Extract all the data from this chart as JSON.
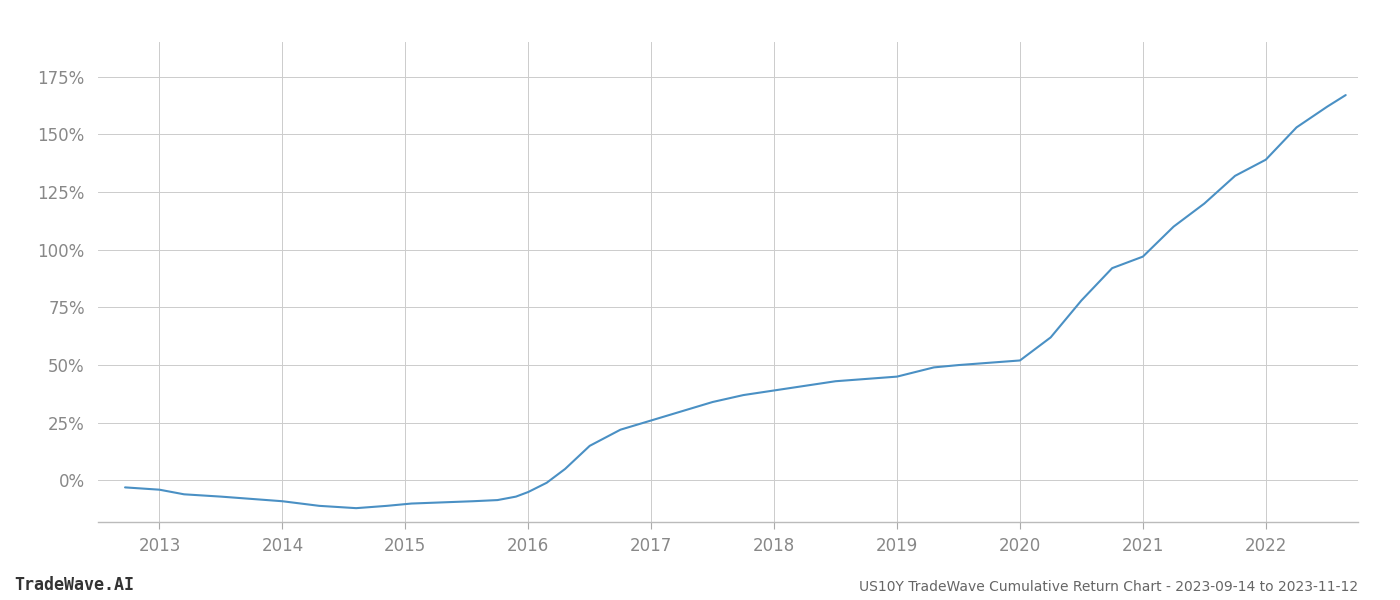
{
  "title": "US10Y TradeWave Cumulative Return Chart - 2023-09-14 to 2023-11-12",
  "watermark": "TradeWave.AI",
  "line_color": "#4a90c4",
  "background_color": "#ffffff",
  "grid_color": "#cccccc",
  "x_years": [
    2012.72,
    2013.0,
    2013.2,
    2013.5,
    2013.75,
    2014.0,
    2014.3,
    2014.6,
    2014.85,
    2015.05,
    2015.3,
    2015.55,
    2015.75,
    2015.9,
    2016.0,
    2016.15,
    2016.3,
    2016.5,
    2016.75,
    2017.0,
    2017.25,
    2017.5,
    2017.75,
    2018.0,
    2018.25,
    2018.5,
    2018.75,
    2019.0,
    2019.15,
    2019.3,
    2019.5,
    2019.75,
    2020.0,
    2020.25,
    2020.5,
    2020.75,
    2021.0,
    2021.25,
    2021.5,
    2021.75,
    2022.0,
    2022.25,
    2022.5,
    2022.65
  ],
  "y_values": [
    -3,
    -4,
    -6,
    -7,
    -8,
    -9,
    -11,
    -12,
    -11,
    -10,
    -9.5,
    -9,
    -8.5,
    -7,
    -5,
    -1,
    5,
    15,
    22,
    26,
    30,
    34,
    37,
    39,
    41,
    43,
    44,
    45,
    47,
    49,
    50,
    51,
    52,
    62,
    78,
    92,
    97,
    110,
    120,
    132,
    139,
    153,
    162,
    167
  ],
  "xlim": [
    2012.5,
    2022.75
  ],
  "ylim": [
    -18,
    190
  ],
  "yticks": [
    0,
    25,
    50,
    75,
    100,
    125,
    150,
    175
  ],
  "ytick_labels": [
    "0%",
    "25%",
    "50%",
    "75%",
    "100%",
    "125%",
    "150%",
    "175%"
  ],
  "xticks": [
    2013,
    2014,
    2015,
    2016,
    2017,
    2018,
    2019,
    2020,
    2021,
    2022
  ],
  "xtick_labels": [
    "2013",
    "2014",
    "2015",
    "2016",
    "2017",
    "2018",
    "2019",
    "2020",
    "2021",
    "2022"
  ],
  "line_width": 1.5,
  "font_color": "#888888",
  "title_font_color": "#666666",
  "title_fontsize": 10,
  "tick_fontsize": 12,
  "watermark_fontsize": 12
}
